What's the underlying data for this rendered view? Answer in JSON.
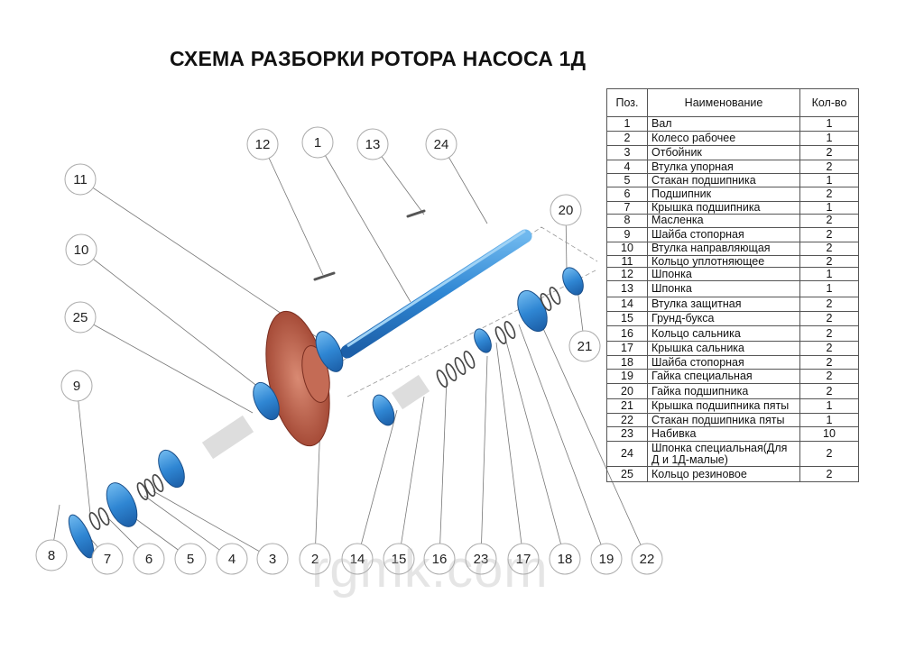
{
  "title": "СХЕМА РАЗБОРКИ РОТОРА НАСОСА 1Д",
  "table": {
    "headers": {
      "pos": "Поз.",
      "name": "Наименование",
      "qty": "Кол-во"
    },
    "rows": [
      {
        "pos": "1",
        "name": "Вал",
        "qty": "1"
      },
      {
        "pos": "2",
        "name": "Колесо рабочее",
        "qty": "1"
      },
      {
        "pos": "3",
        "name": "Отбойник",
        "qty": "2"
      },
      {
        "pos": "4",
        "name": "Втулка упорная",
        "qty": "2"
      },
      {
        "pos": "5",
        "name": "Стакан подшипника",
        "qty": "1"
      },
      {
        "pos": "6",
        "name": "Подшипник",
        "qty": "2"
      },
      {
        "pos": "7",
        "name": "Крышка подшипника",
        "qty": "1"
      },
      {
        "pos": "8",
        "name": "Масленка",
        "qty": "2"
      },
      {
        "pos": "9",
        "name": "Шайба стопорная",
        "qty": "2"
      },
      {
        "pos": "10",
        "name": "Втулка направляющая",
        "qty": "2"
      },
      {
        "pos": "11",
        "name": "Кольцо уплотняющее",
        "qty": "2"
      },
      {
        "pos": "12",
        "name": "Шпонка",
        "qty": "1"
      },
      {
        "pos": "13",
        "name": "Шпонка",
        "qty": "1"
      },
      {
        "pos": "14",
        "name": "Втулка защитная",
        "qty": "2"
      },
      {
        "pos": "15",
        "name": "Грунд-букса",
        "qty": "2"
      },
      {
        "pos": "16",
        "name": "Кольцо сальника",
        "qty": "2"
      },
      {
        "pos": "17",
        "name": "Крышка сальника",
        "qty": "2"
      },
      {
        "pos": "18",
        "name": "Шайба стопорная",
        "qty": "2"
      },
      {
        "pos": "19",
        "name": "Гайка специальная",
        "qty": "2"
      },
      {
        "pos": "20",
        "name": "Гайка подшипника",
        "qty": "2"
      },
      {
        "pos": "21",
        "name": "Крышка подшипника пяты",
        "qty": "1"
      },
      {
        "pos": "22",
        "name": "Стакан подшипника пяты",
        "qty": "1"
      },
      {
        "pos": "23",
        "name": "Набивка",
        "qty": "10"
      },
      {
        "pos": "24",
        "name": "Шпонка специальная(Для Д и 1Д-малые)",
        "qty": "2"
      },
      {
        "pos": "25",
        "name": "Кольцо резиновое",
        "qty": "2"
      }
    ]
  },
  "callouts": [
    "12",
    "1",
    "13",
    "24",
    "11",
    "20",
    "10",
    "25",
    "21",
    "9",
    "8",
    "7",
    "6",
    "5",
    "4",
    "3",
    "2",
    "14",
    "15",
    "16",
    "23",
    "17",
    "18",
    "19",
    "22"
  ],
  "colors": {
    "parts_blue": "#3d8fd6",
    "impeller_red": "#b5533f",
    "callout_border": "#aaaaaa"
  },
  "watermark": "rgmk.com"
}
